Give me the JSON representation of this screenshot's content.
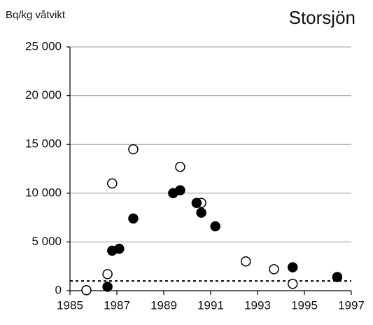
{
  "chart_data": {
    "type": "scatter",
    "title": "Storsjön",
    "y_label": "Bq/kg våtvikt",
    "series": [
      {
        "color": "#ffffff",
        "edge_color": "#000000",
        "x": [
          1985.7,
          1986.6,
          1986.8,
          1987.7,
          1989.7,
          1990.6,
          1992.5,
          1993.7,
          1994.5
        ],
        "values": [
          50,
          1700,
          11000,
          14500,
          12700,
          9000,
          3000,
          2200,
          700
        ]
      },
      {
        "color": "#000000",
        "edge_color": "#000000",
        "x": [
          1986.6,
          1986.8,
          1987.1,
          1987.7,
          1989.4,
          1989.7,
          1990.4,
          1990.6,
          1991.2,
          1994.5,
          1996.4
        ],
        "values": [
          400,
          4100,
          4300,
          7400,
          10000,
          10300,
          9000,
          8000,
          6600,
          2400,
          1400
        ]
      }
    ],
    "reference_line": 1000,
    "xlim": [
      1985,
      1997
    ],
    "xticks": [
      1985,
      1987,
      1989,
      1991,
      1993,
      1995,
      1997
    ],
    "ylim": [
      0,
      25000
    ],
    "yticks": [
      0,
      {
        "value": 5000,
        "label": "5 000"
      },
      {
        "value": 10000,
        "label": "10 000"
      },
      {
        "value": 15000,
        "label": "15 000"
      },
      {
        "value": 20000,
        "label": "20 000"
      },
      {
        "value": 25000,
        "label": "25 000"
      }
    ],
    "grid": true
  }
}
